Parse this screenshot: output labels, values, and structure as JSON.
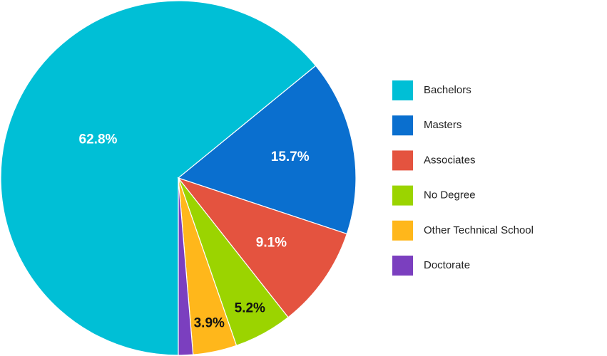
{
  "chart_data": {
    "type": "pie",
    "categories": [
      "Bachelors",
      "Masters",
      "Associates",
      "No Degree",
      "Other Technical School",
      "Doctorate"
    ],
    "values": [
      62.8,
      15.7,
      9.1,
      5.2,
      3.9,
      1.3
    ],
    "value_labels": [
      "62.8%",
      "15.7%",
      "9.1%",
      "5.2%",
      "3.9%",
      null
    ],
    "colors": [
      "#00bfd6",
      "#0a6fcf",
      "#e4533f",
      "#9bd400",
      "#ffb71b",
      "#7b3fbf"
    ],
    "legend": "right"
  }
}
